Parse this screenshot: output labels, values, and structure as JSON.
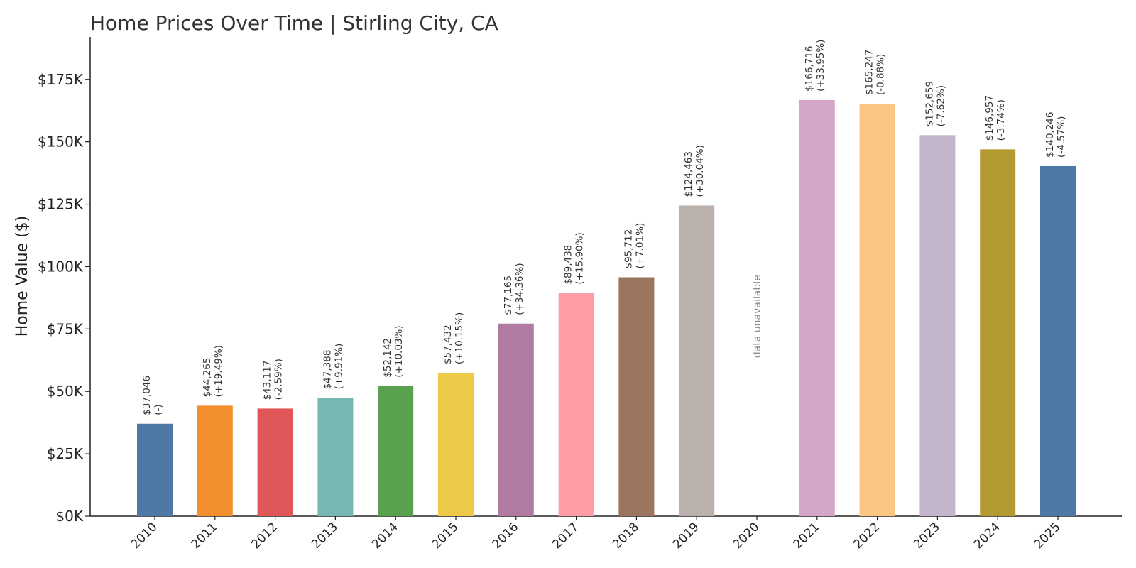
{
  "chart_data": {
    "type": "bar",
    "title": "Home Prices Over Time | Stirling City, CA",
    "xlabel": "",
    "ylabel": "Home Value ($)",
    "ylim": [
      0,
      192000
    ],
    "yticks": [
      0,
      25000,
      50000,
      75000,
      100000,
      125000,
      150000,
      175000
    ],
    "ytick_labels": [
      "$0K",
      "$25K",
      "$50K",
      "$75K",
      "$100K",
      "$125K",
      "$150K",
      "$175K"
    ],
    "grid": false,
    "categories": [
      "2010",
      "2011",
      "2012",
      "2013",
      "2014",
      "2015",
      "2016",
      "2017",
      "2018",
      "2019",
      "2020",
      "2021",
      "2022",
      "2023",
      "2024",
      "2025"
    ],
    "values": [
      37046,
      44265,
      43117,
      47388,
      52142,
      57432,
      77165,
      89438,
      95712,
      124463,
      null,
      166716,
      165247,
      152659,
      146957,
      140246
    ],
    "value_labels": [
      "$37,046",
      "$44,265",
      "$43,117",
      "$47,388",
      "$52,142",
      "$57,432",
      "$77,165",
      "$89,438",
      "$95,712",
      "$124,463",
      "",
      "$166,716",
      "$165,247",
      "$152,659",
      "$146,957",
      "$140,246"
    ],
    "change_labels": [
      "(-)",
      "(+19.49%)",
      "(-2.59%)",
      "(+9.91%)",
      "(+10.03%)",
      "(+10.15%)",
      "(+34.36%)",
      "(+15.90%)",
      "(+7.01%)",
      "(+30.04%)",
      "",
      "(+33.95%)",
      "(-0.88%)",
      "(-7.62%)",
      "(-3.74%)",
      "(-4.57%)"
    ],
    "missing_label": "data unavailable",
    "colors": [
      "#4e79a7",
      "#f28e2b",
      "#e15759",
      "#76b7b2",
      "#59a14f",
      "#edc948",
      "#b07aa1",
      "#ff9da7",
      "#9c755f",
      "#bab0ac",
      "#cccccc",
      "#d4a6c8",
      "#fbc682",
      "#c3b5cb",
      "#b39930",
      "#4e79a7"
    ]
  }
}
